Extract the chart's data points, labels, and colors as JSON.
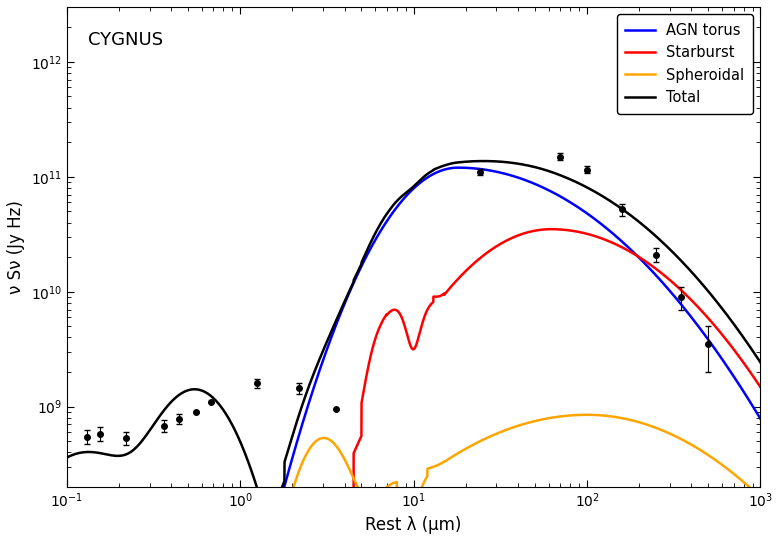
{
  "title": "CYGNUS",
  "xlabel": "Rest λ (μm)",
  "ylabel": "ν Sν (Jy Hz)",
  "xlim": [
    0.1,
    1000
  ],
  "ylim": [
    200000000.0,
    3000000000000.0
  ],
  "legend_labels": [
    "AGN torus",
    "Starburst",
    "Spheroidal",
    "Total"
  ],
  "legend_colors": [
    "blue",
    "red",
    "orange",
    "black"
  ],
  "obs_x": [
    0.13,
    0.155,
    0.22,
    0.365,
    0.445,
    0.555,
    0.675,
    1.25,
    2.17,
    3.55,
    24.0,
    70.0,
    100.0,
    160.0,
    250.0,
    350.0,
    500.0
  ],
  "obs_y": [
    550000000.0,
    580000000.0,
    530000000.0,
    680000000.0,
    780000000.0,
    900000000.0,
    1100000000.0,
    1600000000.0,
    1450000000.0,
    950000000.0,
    110000000000.0,
    150000000000.0,
    115000000000.0,
    52000000000.0,
    21000000000.0,
    9000000000.0,
    3500000000.0
  ],
  "obs_yerr": [
    80000000.0,
    80000000.0,
    70000000.0,
    80000000.0,
    80000000.0,
    0,
    0,
    150000000.0,
    150000000.0,
    0,
    6000000000.0,
    10000000000.0,
    8000000000.0,
    6000000000.0,
    3000000000.0,
    2000000000.0,
    1500000000.0
  ],
  "background_color": "#ffffff"
}
